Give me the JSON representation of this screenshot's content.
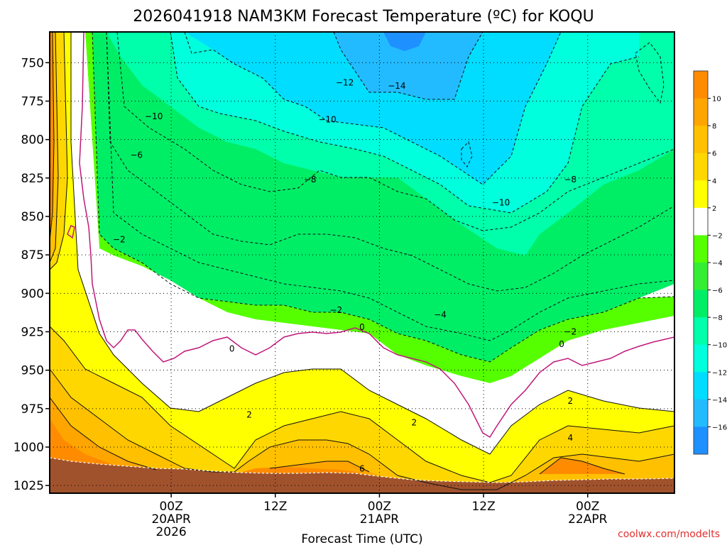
{
  "chart_data": {
    "type": "heatmap",
    "title": "2026041918 NAM3KM Forecast Temperature (ºC) for KOQU",
    "xlabel": "Forecast Time (UTC)",
    "ylabel": "",
    "watermark": "coolwx.com/modelts",
    "x_range_hours": [
      -8,
      64
    ],
    "y_range_hPa": [
      730,
      1030
    ],
    "x_ticks": [
      {
        "hour": 6,
        "lines": [
          "00Z",
          "20APR",
          "2026"
        ]
      },
      {
        "hour": 18,
        "lines": [
          "12Z"
        ]
      },
      {
        "hour": 30,
        "lines": [
          "00Z",
          "21APR"
        ]
      },
      {
        "hour": 42,
        "lines": [
          "12Z"
        ]
      },
      {
        "hour": 54,
        "lines": [
          "00Z",
          "22APR"
        ]
      }
    ],
    "y_ticks": [
      750,
      775,
      800,
      825,
      850,
      875,
      900,
      925,
      950,
      975,
      1000,
      1025
    ],
    "colorbar": {
      "labels": [
        "10",
        "8",
        "6",
        "4",
        "2",
        "−2",
        "−4",
        "−6",
        "−8",
        "−10",
        "−12",
        "−14",
        "−16"
      ],
      "colors": [
        "#ff8c00",
        "#ffa500",
        "#ffc000",
        "#ffd700",
        "#ffff00",
        "#ffffff",
        "#55ff00",
        "#33ee33",
        "#00ee66",
        "#00ffaa",
        "#00ffdd",
        "#00ddff",
        "#22bbff",
        "#1e90ff"
      ]
    },
    "contour_labels": [
      {
        "text": "−10",
        "hour": 4,
        "p": 785
      },
      {
        "text": "−12",
        "hour": 26,
        "p": 763
      },
      {
        "text": "−14",
        "hour": 32,
        "p": 765
      },
      {
        "text": "−10",
        "hour": 24,
        "p": 787
      },
      {
        "text": "−6",
        "hour": 2,
        "p": 810
      },
      {
        "text": "−8",
        "hour": 22,
        "p": 826
      },
      {
        "text": "−8",
        "hour": 52,
        "p": 826
      },
      {
        "text": "−10",
        "hour": 44,
        "p": 841
      },
      {
        "text": "−2",
        "hour": 0,
        "p": 865
      },
      {
        "text": "−2",
        "hour": 25,
        "p": 911
      },
      {
        "text": "−4",
        "hour": 37,
        "p": 914
      },
      {
        "text": "−2",
        "hour": 52,
        "p": 925
      },
      {
        "text": "0",
        "hour": 28,
        "p": 922
      },
      {
        "text": "0",
        "hour": 51,
        "p": 933
      },
      {
        "text": "0",
        "hour": 13,
        "p": 936
      },
      {
        "text": "2",
        "hour": 15,
        "p": 979
      },
      {
        "text": "2",
        "hour": 34,
        "p": 984
      },
      {
        "text": "2",
        "hour": 52,
        "p": 970
      },
      {
        "text": "4",
        "hour": 52,
        "p": 994
      },
      {
        "text": "6",
        "hour": 28,
        "p": 1014
      }
    ]
  }
}
